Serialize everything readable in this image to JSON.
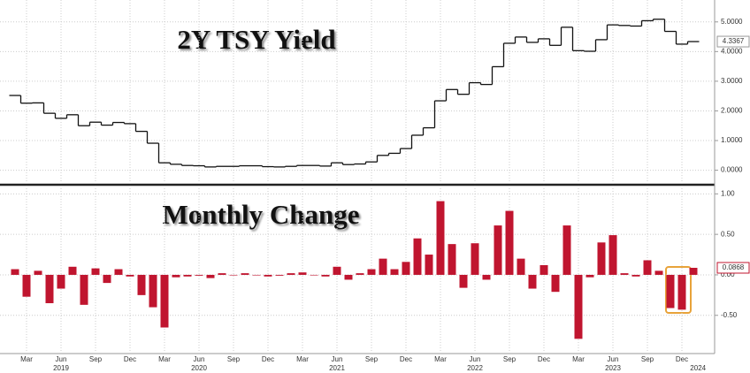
{
  "chart_data": [
    {
      "type": "step",
      "title": "2Y TSY Yield",
      "color": "#111111",
      "values": [
        2.52,
        2.26,
        2.27,
        1.92,
        1.75,
        1.87,
        1.5,
        1.62,
        1.52,
        1.61,
        1.57,
        1.31,
        0.91,
        0.25,
        0.2,
        0.16,
        0.15,
        0.11,
        0.13,
        0.13,
        0.15,
        0.15,
        0.12,
        0.11,
        0.13,
        0.16,
        0.16,
        0.14,
        0.25,
        0.19,
        0.21,
        0.28,
        0.5,
        0.57,
        0.73,
        1.18,
        1.43,
        2.34,
        2.72,
        2.56,
        2.95,
        2.89,
        3.49,
        4.28,
        4.49,
        4.31,
        4.43,
        4.21,
        4.82,
        4.03,
        4.01,
        4.4,
        4.9,
        4.88,
        4.86,
        5.04,
        5.09,
        4.68,
        4.25,
        4.3367
      ],
      "value_labels": [
        null,
        null,
        null,
        null,
        null,
        null,
        null,
        null,
        null,
        null,
        null,
        null,
        null,
        null,
        null,
        null,
        null,
        null,
        null,
        null,
        null,
        null,
        null,
        null,
        null,
        null,
        null,
        null,
        null,
        null,
        null,
        null,
        null,
        null,
        null,
        null,
        null,
        null,
        null,
        null,
        null,
        null,
        null,
        null,
        null,
        null,
        null,
        null,
        null,
        null,
        null,
        null,
        null,
        null,
        null,
        null,
        null,
        null,
        null,
        "4.3367"
      ],
      "ylim": [
        -0.4,
        5.5
      ],
      "yticks": [
        {
          "value": 0,
          "label": "0.0000"
        },
        {
          "value": 1,
          "label": "1.0000"
        },
        {
          "value": 2,
          "label": "2.0000"
        },
        {
          "value": 3,
          "label": "3.0000"
        },
        {
          "value": 4,
          "label": "4.0000"
        },
        {
          "value": 5,
          "label": "5.0000"
        }
      ],
      "grid": true
    },
    {
      "type": "bar",
      "title": "Monthly Change",
      "color": "#c0152f",
      "categories": [
        null,
        "Mar",
        null,
        null,
        "Jun",
        null,
        null,
        "Sep",
        null,
        null,
        "Dec",
        null,
        null,
        "Mar",
        null,
        null,
        "Jun",
        null,
        null,
        "Sep",
        null,
        null,
        "Dec",
        null,
        null,
        "Mar",
        null,
        null,
        "Jun",
        null,
        null,
        "Sep",
        null,
        null,
        "Dec",
        null,
        null,
        "Mar",
        null,
        null,
        "Jun",
        null,
        null,
        "Sep",
        null,
        null,
        "Dec",
        null,
        null,
        "Mar",
        null,
        null,
        "Jun",
        null,
        null,
        "Sep",
        null,
        null,
        "Dec",
        null
      ],
      "years": [
        "2019",
        "2020",
        "2021",
        "2022",
        "2023",
        "2024"
      ],
      "values": [
        0.07,
        -0.27,
        0.05,
        -0.35,
        -0.17,
        0.1,
        -0.37,
        0.08,
        -0.1,
        0.07,
        -0.02,
        -0.25,
        -0.4,
        -0.65,
        -0.03,
        -0.02,
        -0.01,
        -0.04,
        0.02,
        0,
        0.02,
        0,
        -0.02,
        -0.01,
        0.02,
        0.03,
        0,
        -0.02,
        0.1,
        -0.06,
        0.02,
        0.07,
        0.2,
        0.07,
        0.16,
        0.45,
        0.25,
        0.91,
        0.38,
        -0.16,
        0.39,
        -0.06,
        0.61,
        0.79,
        0.2,
        -0.17,
        0.12,
        -0.21,
        0.61,
        -0.79,
        -0.03,
        0.4,
        0.49,
        0.02,
        -0.02,
        0.18,
        0.05,
        -0.41,
        -0.43,
        0.0868
      ],
      "value_labels": [
        null,
        null,
        null,
        null,
        null,
        null,
        null,
        null,
        null,
        null,
        null,
        null,
        null,
        null,
        null,
        null,
        null,
        null,
        null,
        null,
        null,
        null,
        null,
        null,
        null,
        null,
        null,
        null,
        null,
        null,
        null,
        null,
        null,
        null,
        null,
        null,
        null,
        null,
        null,
        null,
        null,
        null,
        null,
        null,
        null,
        null,
        null,
        null,
        null,
        null,
        null,
        null,
        null,
        null,
        null,
        null,
        null,
        null,
        null,
        "0.0868"
      ],
      "ylim": [
        -0.95,
        1.08
      ],
      "yticks": [
        {
          "value": -0.5,
          "label": "-0.50"
        },
        {
          "value": 0,
          "label": "0.00"
        },
        {
          "value": 0.5,
          "label": "0.50"
        },
        {
          "value": 1,
          "label": "1.00"
        }
      ],
      "grid": true
    }
  ]
}
